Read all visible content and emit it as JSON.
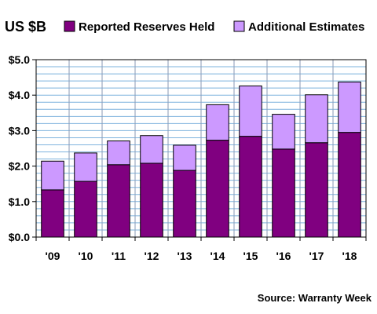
{
  "chart_data": {
    "type": "bar",
    "stacked": true,
    "title": "US $B",
    "source": "Source: Warranty Week",
    "categories": [
      "'09",
      "'10",
      "'11",
      "'12",
      "'13",
      "'14",
      "'15",
      "'16",
      "'17",
      "'18"
    ],
    "series": [
      {
        "name": "Reported Reserves Held",
        "color": "#800080",
        "values": [
          1.33,
          1.57,
          2.04,
          2.08,
          1.88,
          2.73,
          2.84,
          2.48,
          2.66,
          2.95
        ]
      },
      {
        "name": "Additional Estimates",
        "color": "#CC99FF",
        "values": [
          0.81,
          0.8,
          0.67,
          0.78,
          0.71,
          1.0,
          1.42,
          0.98,
          1.35,
          1.42
        ]
      }
    ],
    "y_ticks": [
      "$0.0",
      "$1.0",
      "$2.0",
      "$3.0",
      "$4.0",
      "$5.0"
    ],
    "ylim": [
      0,
      5
    ],
    "grid": true,
    "legend_position": "top"
  }
}
